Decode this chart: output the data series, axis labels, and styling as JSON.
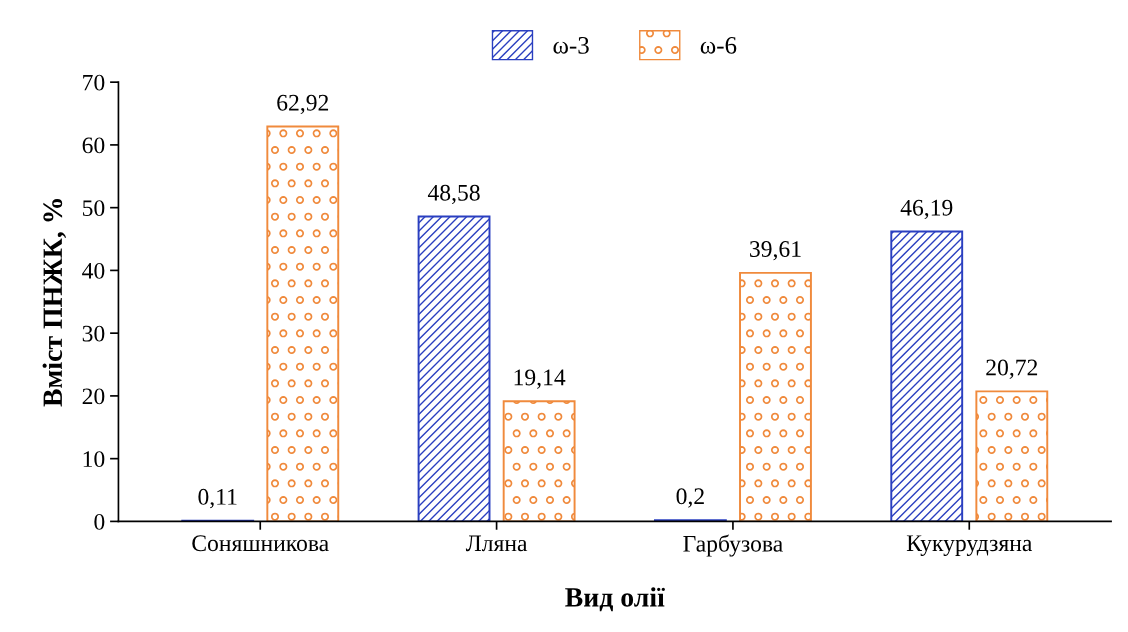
{
  "chart_data": {
    "type": "bar",
    "xlabel": "Вид олії",
    "ylabel": "Вміст ПНЖК, %",
    "categories": [
      "Соняшникова",
      "Лляна",
      "Гарбузова",
      "Кукурудзяна"
    ],
    "series": [
      {
        "name": "ω-3",
        "color": "#2a3fc0",
        "values": [
          0.11,
          48.58,
          0.2,
          46.19
        ],
        "value_labels": [
          "0,11",
          "48,58",
          "0,2",
          "46,19"
        ]
      },
      {
        "name": "ω-6",
        "color": "#f08a3c",
        "values": [
          62.92,
          19.14,
          39.61,
          20.72
        ],
        "value_labels": [
          "62,92",
          "19,14",
          "39,61",
          "20,72"
        ]
      }
    ],
    "ylim": [
      0,
      70
    ],
    "yticks": [
      0,
      10,
      20,
      30,
      40,
      50,
      60,
      70
    ],
    "grid": false,
    "legend": "top"
  }
}
